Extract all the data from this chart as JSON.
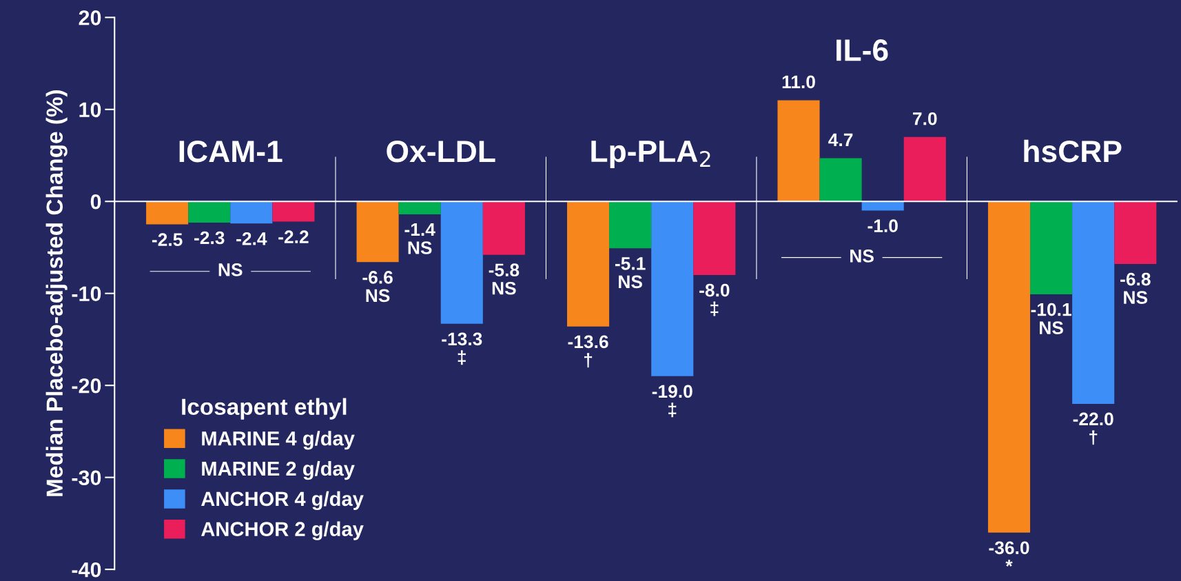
{
  "chart_data": {
    "type": "bar",
    "ylabel": "Median Placebo-adjusted Change (%)",
    "legend_title": "Icosapent ethyl",
    "categories": [
      "ICAM-1",
      "Ox-LDL",
      "Lp-PLA$_{2}$",
      "IL-6",
      "hsCRP"
    ],
    "series": [
      {
        "name": "MARINE 4 g/day",
        "color": "#f7861c",
        "values": [
          -2.5,
          -6.6,
          -13.6,
          11.0,
          -36.0
        ],
        "value_labels": [
          "-2.5",
          "-6.6\nNS",
          "-13.6\n†",
          "11.0",
          "-36.0\n*"
        ]
      },
      {
        "name": "MARINE 2 g/day",
        "color": "#00b050",
        "values": [
          -2.3,
          -1.4,
          -5.1,
          4.7,
          -10.1
        ],
        "value_labels": [
          "-2.3",
          "-1.4\nNS",
          "-5.1\nNS",
          "4.7",
          "-10.1\nNS"
        ]
      },
      {
        "name": "ANCHOR 4 g/day",
        "color": "#3d8ef7",
        "values": [
          -2.4,
          -13.3,
          -19.0,
          -1.0,
          -22.0
        ],
        "value_labels": [
          "-2.4",
          "-13.3\n‡",
          "-19.0\n‡",
          "-1.0",
          "-22.0\n†"
        ]
      },
      {
        "name": "ANCHOR 2 g/day",
        "color": "#e91e5a",
        "values": [
          -2.2,
          -5.8,
          -8.0,
          7.0,
          -6.8
        ],
        "value_labels": [
          "-2.2",
          "-5.8\nNS",
          "-8.0\n‡",
          "7.0",
          "-6.8\nNS"
        ]
      }
    ],
    "annotations": [
      "NS",
      "NS"
    ],
    "ylim": [
      -40,
      20
    ],
    "yticks": [
      -40,
      -30,
      -20,
      -10,
      0,
      10,
      20
    ],
    "tick_labels": "y",
    "legend": "bottom left",
    "grid": false
  }
}
